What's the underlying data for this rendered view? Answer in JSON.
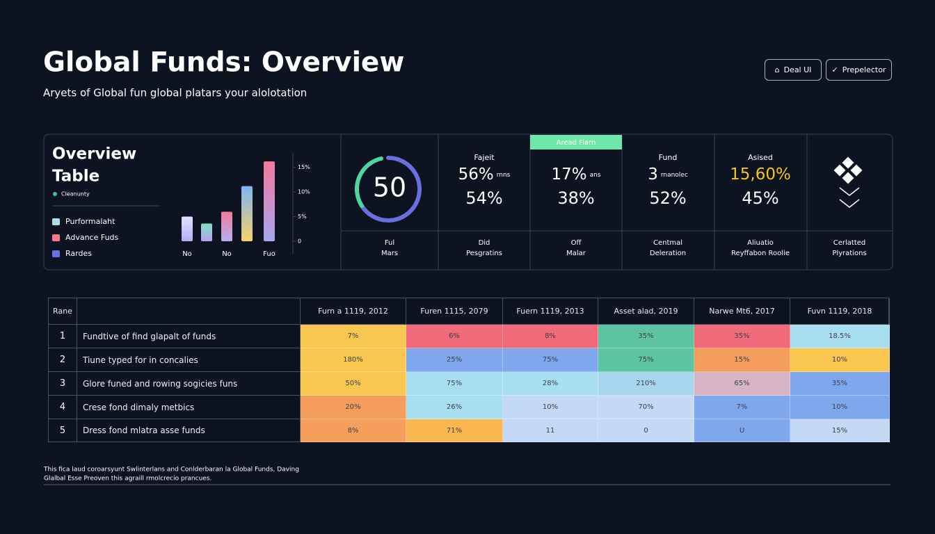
{
  "header": {
    "title": "Global Funds: Overview",
    "subtitle": "Aryets of Global fun global platars your alolotation",
    "buttons": [
      "Deal UI",
      "Prepelector"
    ]
  },
  "overview": {
    "title": "Overview",
    "title_line2": "Table",
    "tag": "Cleanunty",
    "legend": [
      {
        "label": "Purformalaht",
        "color": "#a8e0f0"
      },
      {
        "label": "Advance Fuds",
        "color": "#f27a8c"
      },
      {
        "label": "Rardes",
        "color": "#6a72e0"
      }
    ],
    "chart": {
      "type": "bar",
      "categories": [
        "No",
        null,
        "No",
        null,
        "Fuo"
      ],
      "values": [
        5,
        3.6,
        6,
        11.2,
        16.2
      ],
      "colors": [
        [
          "#e6e0ff",
          "#b6aef0"
        ],
        [
          "#7fe0c4",
          "#b6a2f0"
        ],
        [
          "#f27a9c",
          "#b6aef0"
        ],
        [
          "#7fb6f2",
          "#f5d36a"
        ],
        [
          "#f27a9c",
          "#a8a4f0"
        ]
      ],
      "ylim": [
        0,
        16.5
      ],
      "yticks": [
        {
          "value": 15,
          "label": "15%"
        },
        {
          "value": 10,
          "label": "10%"
        },
        {
          "value": 5,
          "label": "5%"
        },
        0
      ]
    }
  },
  "kpis": [
    {
      "value": "50",
      "caption": [
        "Ful",
        "Mars"
      ]
    },
    {
      "label": "Fajeit",
      "primary": "56%",
      "unit": "rnns",
      "secondary": "54%",
      "caption": [
        "Did",
        "Pesgratins"
      ]
    },
    {
      "tab": "Aread Fiarn",
      "primary": "17%",
      "unit": "ans",
      "secondary": "38%",
      "caption": [
        "Off",
        "Malar"
      ]
    },
    {
      "label": "Fund",
      "primary": "3",
      "unit": "rnanolec",
      "secondary": "52%",
      "caption": [
        "Centmal",
        "Deleration"
      ]
    },
    {
      "label": "Asised",
      "primary": "15,60%",
      "highlight": "#f5c518",
      "secondary": "45%",
      "caption": [
        "Aliuatio",
        "Reyffabon Roolie"
      ]
    },
    {
      "caption": [
        "Cerlatted",
        "Plyrations"
      ]
    }
  ],
  "table": {
    "headers": [
      "Rane",
      "Furn a 1119, 2012",
      "Furen 1115, 2079",
      "Fuern 1119, 2013",
      "Asset alad, 2019",
      "Narwe Mt6, 2017",
      "Fuvn 1119, 2018"
    ],
    "rows": [
      {
        "rank": "1",
        "label": "Fundtive of find glapalt of funds",
        "cells": [
          "7%",
          "6%",
          "8%",
          "35%",
          "35%",
          "18.5%"
        ],
        "colors": [
          "#f9c74f",
          "#f06a7a",
          "#f06a7a",
          "#5cc4a0",
          "#f06a7a",
          "#a8dff0"
        ]
      },
      {
        "rank": "2",
        "label": "Tiune typed for in concalies",
        "cells": [
          "180%",
          "25%",
          "75%",
          "75%",
          "15%",
          "10%"
        ],
        "colors": [
          "#f9c74f",
          "#7fa7ee",
          "#7fa7ee",
          "#5cc4a0",
          "#f59e5b",
          "#f9c74f"
        ]
      },
      {
        "rank": "3",
        "label": "Glore funed and rowing sogicies funs",
        "cells": [
          "50%",
          "75%",
          "28%",
          "210%",
          "65%",
          "35%"
        ],
        "colors": [
          "#f9c74f",
          "#a8dff0",
          "#a8dff0",
          "#a8d6ee",
          "#d8b4c4",
          "#7fa7ee"
        ]
      },
      {
        "rank": "4",
        "label": "Crese fond dimaly metbics",
        "cells": [
          "20%",
          "26%",
          "10%",
          "70%",
          "7%",
          "10%"
        ],
        "colors": [
          "#f59e5b",
          "#a8dff0",
          "#c3d9f5",
          "#c3d9f5",
          "#7fa7ee",
          "#7fa7ee"
        ]
      },
      {
        "rank": "5",
        "label": "Dress fond mlatra asse funds",
        "cells": [
          "8%",
          "71%",
          "11",
          "0",
          "U",
          "15%"
        ],
        "colors": [
          "#f59e5b",
          "#f9b74f",
          "#c3d9f5",
          "#c3d9f5",
          "#7fa7ee",
          "#c3d9f5"
        ]
      }
    ]
  },
  "footer": [
    "This fica laud coroarsyunt Swlinterlans and Conlderbaran la Global Funds, Daving",
    "Glalbal Esse Preoven this agraill rmolcrecio prancues."
  ]
}
